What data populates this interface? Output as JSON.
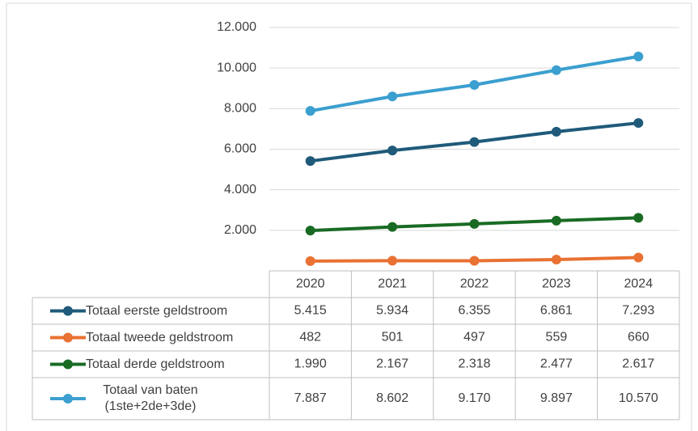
{
  "chart_data": {
    "type": "line",
    "categories": [
      "2020",
      "2021",
      "2022",
      "2023",
      "2024"
    ],
    "series": [
      {
        "name": "Totaal eerste geldstroom",
        "color": "#1f5a7a",
        "values": [
          5415,
          5934,
          6355,
          6861,
          7293
        ],
        "value_labels": [
          "5.415",
          "5.934",
          "6.355",
          "6.861",
          "7.293"
        ]
      },
      {
        "name": "Totaal tweede geldstroom",
        "color": "#e97132",
        "values": [
          482,
          501,
          497,
          559,
          660
        ],
        "value_labels": [
          "482",
          "501",
          "497",
          "559",
          "660"
        ]
      },
      {
        "name": "Totaal derde geldstroom",
        "color": "#196b24",
        "values": [
          1990,
          2167,
          2318,
          2477,
          2617
        ],
        "value_labels": [
          "1.990",
          "2.167",
          "2.318",
          "2.477",
          "2.617"
        ]
      },
      {
        "name": "Totaal van baten (1ste+2de+3de)",
        "color": "#3b9fcf",
        "values": [
          7887,
          8602,
          9170,
          9897,
          10570
        ],
        "value_labels": [
          "7.887",
          "8.602",
          "9.170",
          "9.897",
          "10.570"
        ]
      }
    ],
    "ylim": [
      0,
      12000
    ],
    "yticks": [
      {
        "value": 2000,
        "label": "2.000"
      },
      {
        "value": 4000,
        "label": "4.000"
      },
      {
        "value": 6000,
        "label": "6.000"
      },
      {
        "value": 8000,
        "label": "8.000"
      },
      {
        "value": 10000,
        "label": "10.000"
      },
      {
        "value": 12000,
        "label": "12.000"
      }
    ],
    "grid": true
  }
}
